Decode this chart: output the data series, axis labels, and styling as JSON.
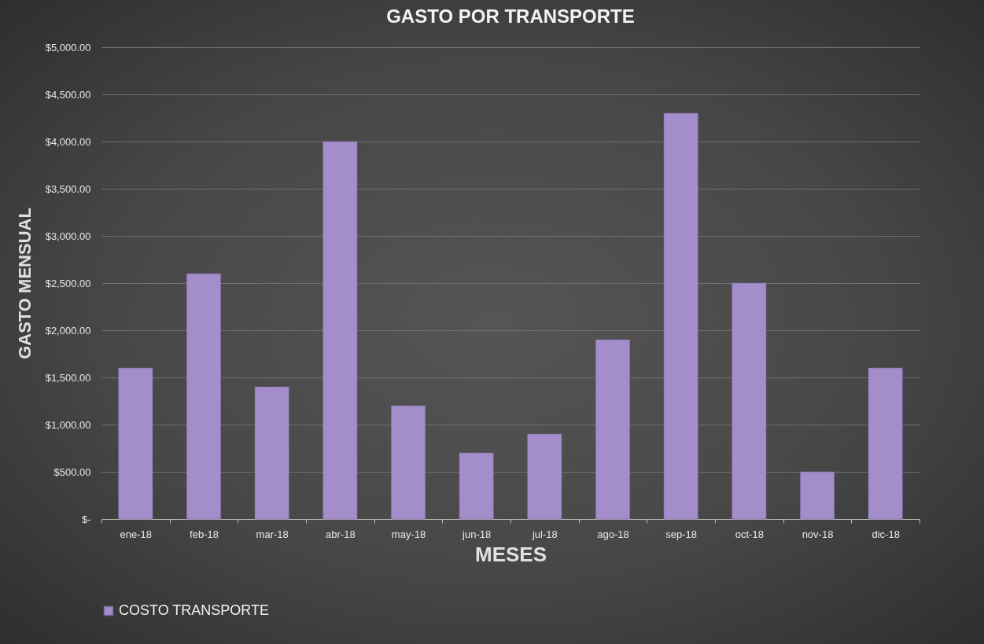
{
  "chart_data": {
    "type": "bar",
    "title": "GASTO POR TRANSPORTE",
    "xlabel": "MESES",
    "ylabel": "GASTO MENSUAL",
    "categories": [
      "ene-18",
      "feb-18",
      "mar-18",
      "abr-18",
      "may-18",
      "jun-18",
      "jul-18",
      "ago-18",
      "sep-18",
      "oct-18",
      "nov-18",
      "dic-18"
    ],
    "series": [
      {
        "name": "COSTO TRANSPORTE",
        "color": "#a38dcb",
        "values": [
          1600,
          2600,
          1400,
          4000,
          1200,
          700,
          900,
          1900,
          4300,
          2500,
          500,
          1600
        ]
      }
    ],
    "ylim": [
      0,
      5000
    ],
    "yticks": [
      {
        "value": 0,
        "label": "$-"
      },
      {
        "value": 500,
        "label": "$500.00"
      },
      {
        "value": 1000,
        "label": "$1,000.00"
      },
      {
        "value": 1500,
        "label": "$1,500.00"
      },
      {
        "value": 2000,
        "label": "$2,000.00"
      },
      {
        "value": 2500,
        "label": "$2,500.00"
      },
      {
        "value": 3000,
        "label": "$3,000.00"
      },
      {
        "value": 3500,
        "label": "$3,500.00"
      },
      {
        "value": 4000,
        "label": "$4,000.00"
      },
      {
        "value": 4500,
        "label": "$4,500.00"
      },
      {
        "value": 5000,
        "label": "$5,000.00"
      }
    ],
    "grid": "y",
    "legend": "bottom"
  }
}
